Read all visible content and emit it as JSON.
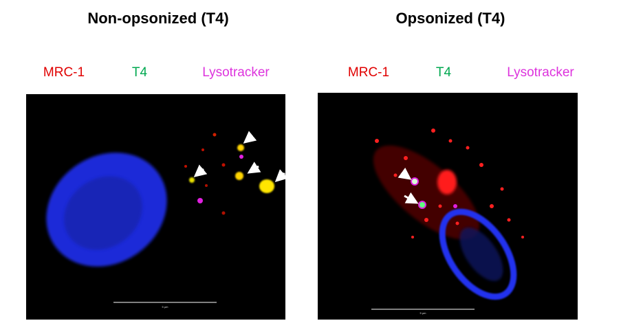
{
  "panels": [
    {
      "title": "Non-opsonized (T4)",
      "labels": [
        "MRC-1",
        "T4",
        "Lysotracker"
      ],
      "scale_bar": "5 µm"
    },
    {
      "title": "Opsonized (T4)",
      "labels": [
        "MRC-1",
        "T4",
        "Lysotracker"
      ],
      "scale_bar": "5 µm"
    }
  ]
}
